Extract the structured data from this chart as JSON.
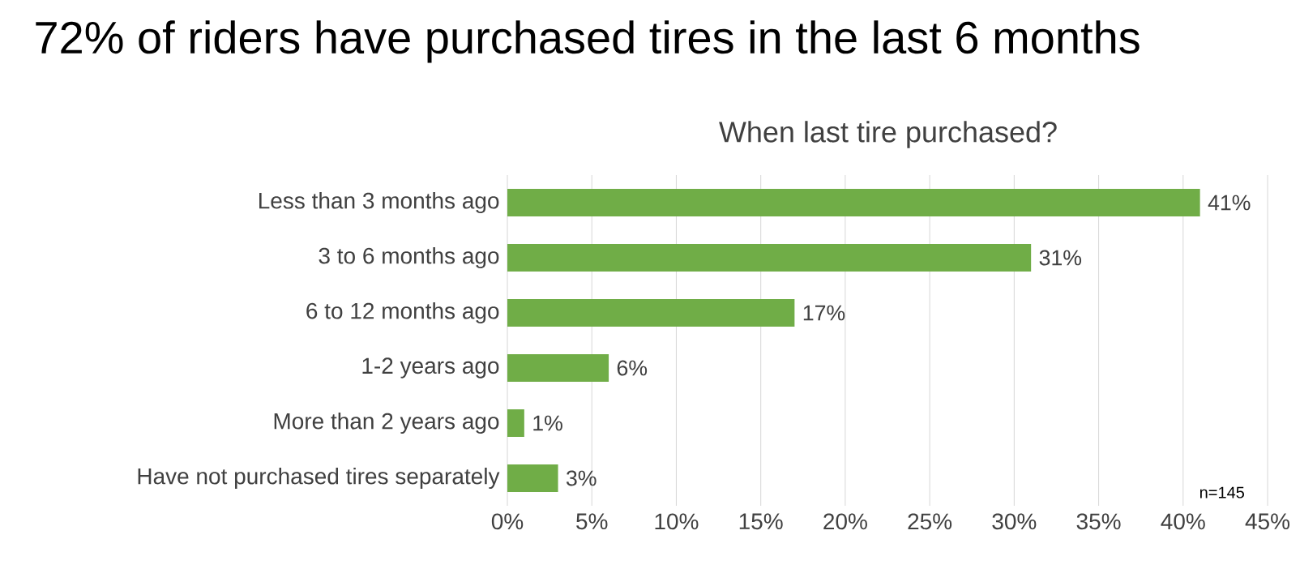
{
  "chart_data": {
    "type": "bar",
    "orientation": "horizontal",
    "title": "72% of riders have purchased tires in the last 6 months",
    "subtitle": "When last tire purchased?",
    "categories": [
      "Less than 3 months ago",
      "3 to 6 months ago",
      "6 to 12 months ago",
      "1-2 years ago",
      "More than 2 years ago",
      "Have not purchased tires separately"
    ],
    "values": [
      41,
      31,
      17,
      6,
      1,
      3
    ],
    "value_labels": [
      "41%",
      "31%",
      "17%",
      "6%",
      "1%",
      "3%"
    ],
    "color": "#70ad47",
    "xlim": [
      0,
      45
    ],
    "xticks": [
      {
        "value": 0,
        "label": "0%"
      },
      {
        "value": 5,
        "label": "5%"
      },
      {
        "value": 10,
        "label": "10%"
      },
      {
        "value": 15,
        "label": "15%"
      },
      {
        "value": 20,
        "label": "20%"
      },
      {
        "value": 25,
        "label": "25%"
      },
      {
        "value": 30,
        "label": "30%"
      },
      {
        "value": 35,
        "label": "35%"
      },
      {
        "value": 40,
        "label": "40%"
      },
      {
        "value": 45,
        "label": "45%"
      }
    ],
    "grid": "x",
    "annotations": [
      "n=145"
    ]
  }
}
